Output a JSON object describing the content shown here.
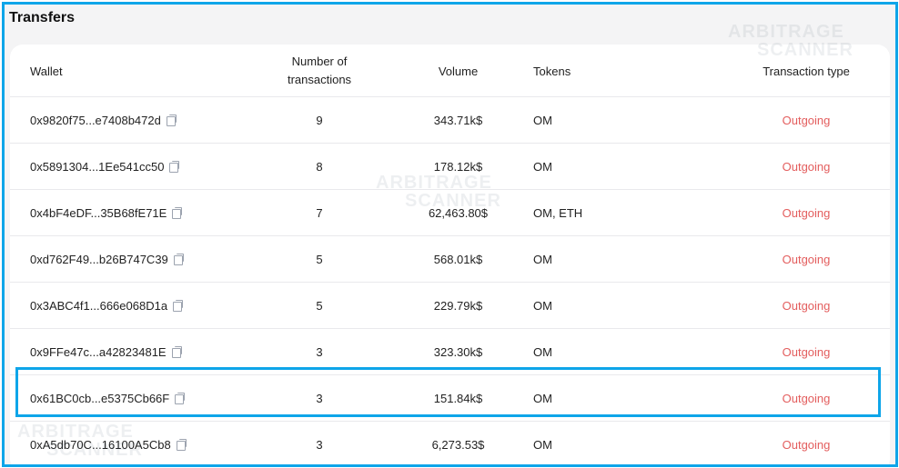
{
  "section_title": "Transfers",
  "watermark": {
    "line1": "ARBITRAGE",
    "line2": "SCANNER"
  },
  "table": {
    "headers": {
      "wallet": "Wallet",
      "count_line1": "Number of",
      "count_line2": "transactions",
      "volume": "Volume",
      "tokens": "Tokens",
      "type": "Transaction type"
    },
    "rows": [
      {
        "wallet": "0x9820f75...e7408b472d",
        "count": "9",
        "volume": "343.71k$",
        "tokens": "OM",
        "type": "Outgoing"
      },
      {
        "wallet": "0x5891304...1Ee541cc50",
        "count": "8",
        "volume": "178.12k$",
        "tokens": "OM",
        "type": "Outgoing"
      },
      {
        "wallet": "0x4bF4eDF...35B68fE71E",
        "count": "7",
        "volume": "62,463.80$",
        "tokens": "OM, ETH",
        "type": "Outgoing"
      },
      {
        "wallet": "0xd762F49...b26B747C39",
        "count": "5",
        "volume": "568.01k$",
        "tokens": "OM",
        "type": "Outgoing"
      },
      {
        "wallet": "0x3ABC4f1...666e068D1a",
        "count": "5",
        "volume": "229.79k$",
        "tokens": "OM",
        "type": "Outgoing"
      },
      {
        "wallet": "0x9FFe47c...a42823481E",
        "count": "3",
        "volume": "323.30k$",
        "tokens": "OM",
        "type": "Outgoing"
      },
      {
        "wallet": "0x61BC0cb...e5375Cb66F",
        "count": "3",
        "volume": "151.84k$",
        "tokens": "OM",
        "type": "Outgoing"
      },
      {
        "wallet": "0xA5db70C...16100A5Cb8",
        "count": "3",
        "volume": "6,273.53$",
        "tokens": "OM",
        "type": "Outgoing"
      }
    ]
  },
  "colors": {
    "outgoing": "#e35d5d",
    "highlight_border": "#0ea5e9"
  }
}
